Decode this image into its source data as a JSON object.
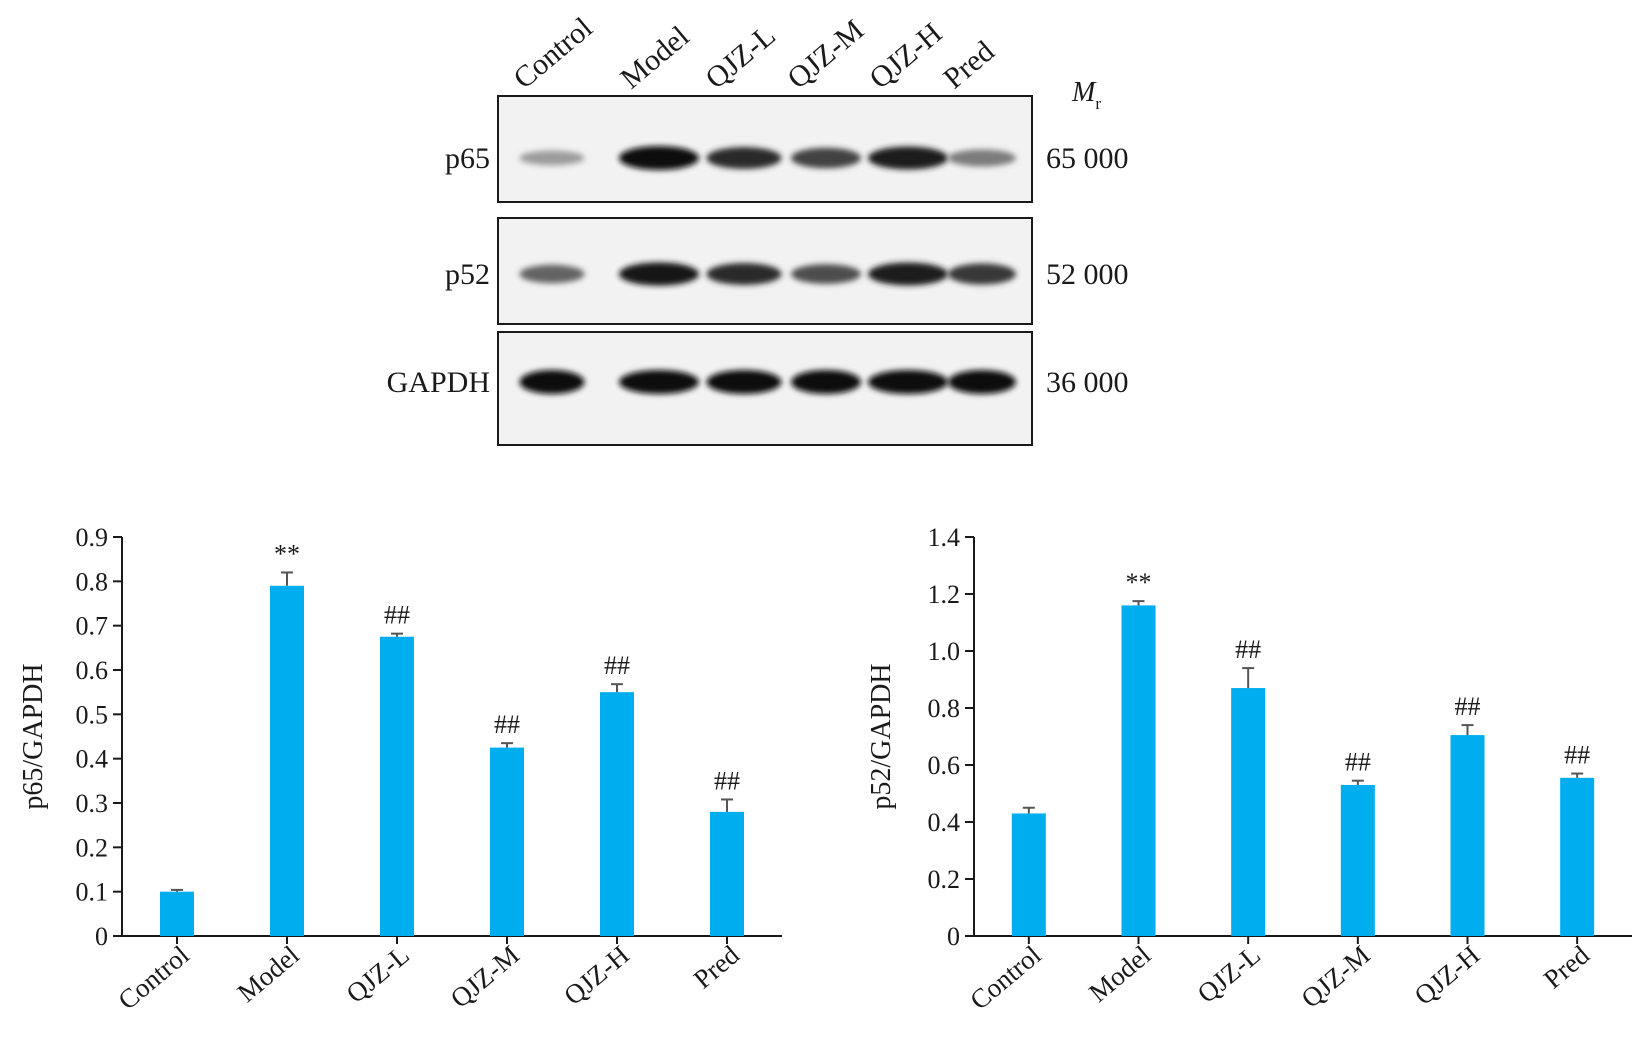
{
  "blot": {
    "lanes": [
      "Control",
      "Model",
      "QJZ-L",
      "QJZ-M",
      "QJZ-H",
      "Pred"
    ],
    "mr_symbol": "M",
    "mr_subscript": "r",
    "rows": [
      {
        "label": "p65",
        "mw": "65 000",
        "intensities": [
          0.35,
          1.0,
          0.85,
          0.75,
          0.92,
          0.5
        ]
      },
      {
        "label": "p52",
        "mw": "52 000",
        "intensities": [
          0.6,
          0.95,
          0.85,
          0.7,
          0.92,
          0.8
        ]
      },
      {
        "label": "GAPDH",
        "mw": "36 000",
        "intensities": [
          1.0,
          1.0,
          1.0,
          1.0,
          1.0,
          1.0
        ]
      }
    ]
  },
  "chart_data": [
    {
      "type": "bar",
      "categories": [
        "Control",
        "Model",
        "QJZ-L",
        "QJZ-M",
        "QJZ-H",
        "Pred"
      ],
      "values": [
        0.1,
        0.79,
        0.675,
        0.425,
        0.55,
        0.28
      ],
      "errors": [
        0.004,
        0.03,
        0.007,
        0.01,
        0.018,
        0.028
      ],
      "significance": [
        "",
        "**",
        "##",
        "##",
        "##",
        "##"
      ],
      "ylabel": "p65/GAPDH",
      "ylim": [
        0,
        0.9
      ],
      "yticks": [
        "0",
        "0.1",
        "0.2",
        "0.3",
        "0.4",
        "0.5",
        "0.6",
        "0.7",
        "0.8",
        "0.9"
      ],
      "color": "#00aeef"
    },
    {
      "type": "bar",
      "categories": [
        "Control",
        "Model",
        "QJZ-L",
        "QJZ-M",
        "QJZ-H",
        "Pred"
      ],
      "values": [
        0.43,
        1.16,
        0.87,
        0.53,
        0.705,
        0.555
      ],
      "errors": [
        0.02,
        0.015,
        0.07,
        0.015,
        0.035,
        0.015
      ],
      "significance": [
        "",
        "**",
        "##",
        "##",
        "##",
        "##"
      ],
      "ylabel": "p52/GAPDH",
      "ylim": [
        0,
        1.4
      ],
      "yticks": [
        "0",
        "0.2",
        "0.4",
        "0.6",
        "0.8",
        "1.0",
        "1.2",
        "1.4"
      ],
      "color": "#00aeef"
    }
  ]
}
